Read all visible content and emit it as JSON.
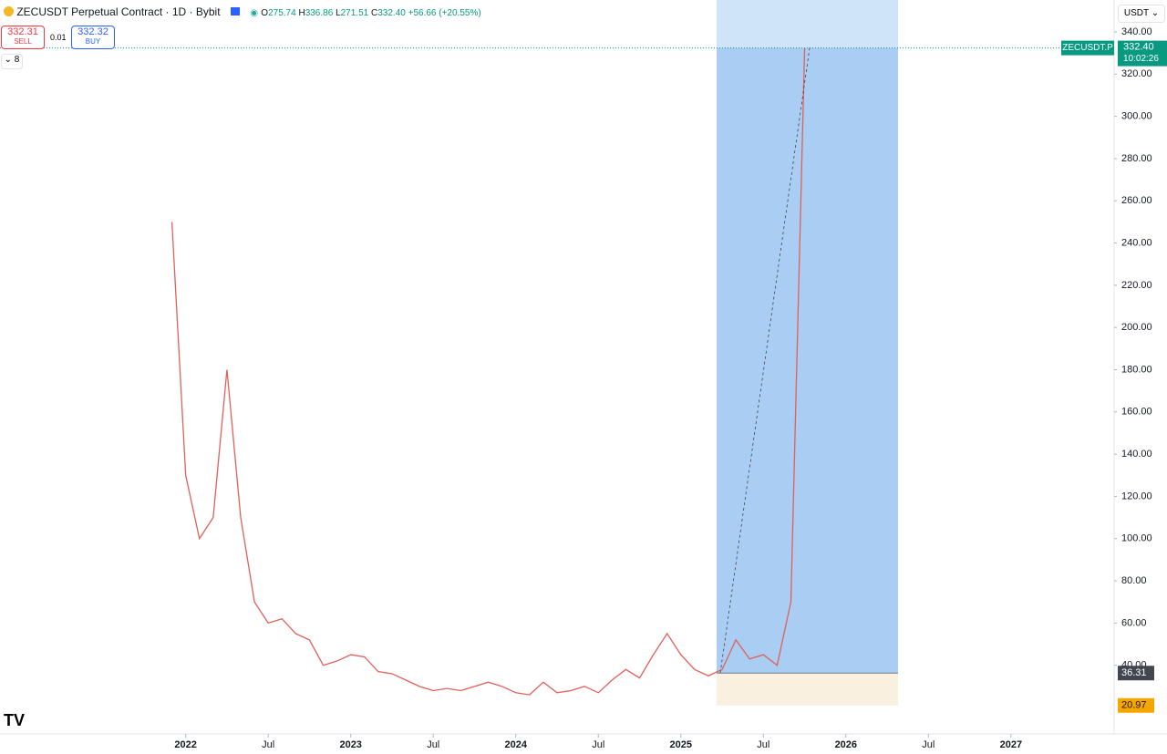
{
  "header": {
    "symbol": "ZECUSDT Perpetual Contract · 1D · Bybit",
    "o_label": "O",
    "open": "275.74",
    "h_label": "H",
    "high": "336.86",
    "l_label": "L",
    "low": "271.51",
    "c_label": "C",
    "close": "332.40",
    "change": "+56.66 (+20.55%)",
    "sell_price": "332.31",
    "sell": "SELL",
    "spread": "0.01",
    "buy_price": "332.32",
    "buy": "BUY",
    "indicators": "8",
    "currency": "USDT"
  },
  "chart_data": {
    "type": "line",
    "x": [
      "2021-12",
      "2022-01",
      "2022-02",
      "2022-03",
      "2022-04",
      "2022-05",
      "2022-06",
      "2022-07",
      "2022-08",
      "2022-09",
      "2022-10",
      "2022-11",
      "2022-12",
      "2023-01",
      "2023-02",
      "2023-03",
      "2023-04",
      "2023-05",
      "2023-06",
      "2023-07",
      "2023-08",
      "2023-09",
      "2023-10",
      "2023-11",
      "2023-12",
      "2024-01",
      "2024-02",
      "2024-03",
      "2024-04",
      "2024-05",
      "2024-06",
      "2024-07",
      "2024-08",
      "2024-09",
      "2024-10",
      "2024-11",
      "2024-12",
      "2025-01",
      "2025-02",
      "2025-03",
      "2025-04",
      "2025-05",
      "2025-06",
      "2025-07",
      "2025-08",
      "2025-09",
      "2025-10"
    ],
    "series": [
      {
        "name": "ZECUSDT.P",
        "color": "#e0605a",
        "values": [
          250,
          130,
          100,
          110,
          180,
          110,
          70,
          60,
          62,
          55,
          52,
          40,
          42,
          45,
          44,
          37,
          36,
          33,
          30,
          28,
          29,
          28,
          30,
          32,
          30,
          27,
          26,
          32,
          27,
          28,
          30,
          27,
          33,
          38,
          34,
          45,
          55,
          45,
          38,
          35,
          38,
          52,
          43,
          45,
          40,
          70,
          332.4
        ]
      }
    ],
    "xlim": [
      "2020-12",
      "2027-09"
    ],
    "xticks": [
      {
        "value": "2022-01",
        "label": "2022"
      },
      {
        "value": "2022-07",
        "label": "Jul"
      },
      {
        "value": "2023-01",
        "label": "2023"
      },
      {
        "value": "2023-07",
        "label": "Jul"
      },
      {
        "value": "2024-01",
        "label": "2024"
      },
      {
        "value": "2024-07",
        "label": "Jul"
      },
      {
        "value": "2025-01",
        "label": "2025"
      },
      {
        "value": "2025-07",
        "label": "Jul"
      },
      {
        "value": "2026-01",
        "label": "2026"
      },
      {
        "value": "2026-07",
        "label": "Jul"
      },
      {
        "value": "2027-01",
        "label": "2027"
      }
    ],
    "ylim": [
      20,
      340
    ],
    "yticks": [
      {
        "value": 40,
        "label": "40.00"
      },
      {
        "value": 60,
        "label": "60.00"
      },
      {
        "value": 80,
        "label": "80.00"
      },
      {
        "value": 100,
        "label": "100.00"
      },
      {
        "value": 120,
        "label": "120.00"
      },
      {
        "value": 140,
        "label": "140.00"
      },
      {
        "value": 160,
        "label": "160.00"
      },
      {
        "value": 180,
        "label": "180.00"
      },
      {
        "value": 200,
        "label": "200.00"
      },
      {
        "value": 220,
        "label": "220.00"
      },
      {
        "value": 240,
        "label": "240.00"
      },
      {
        "value": 260,
        "label": "260.00"
      },
      {
        "value": 280,
        "label": "280.00"
      },
      {
        "value": 300,
        "label": "300.00"
      },
      {
        "value": 320,
        "label": "320.00"
      },
      {
        "value": 340,
        "label": "340.00"
      }
    ],
    "last_price": {
      "name": "ZECUSDT.P",
      "price": {
        "value": 332.4,
        "label": "332.40"
      },
      "countdown": "10:02:26"
    },
    "position": {
      "entry": 36.31,
      "stop": 20.97
    }
  }
}
